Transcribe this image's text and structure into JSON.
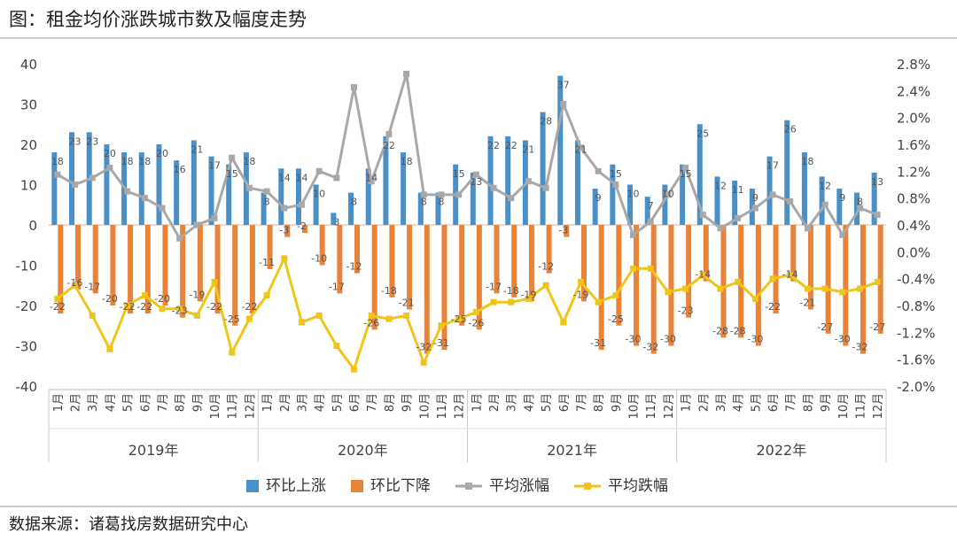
{
  "title": "图：租金均价涨跌城市数及幅度走势",
  "source": "数据来源：诸葛找房数据研究中心",
  "chart_data": {
    "type": "bar+line",
    "title": "图：租金均价涨跌城市数及幅度走势",
    "categories": [
      "1月",
      "2月",
      "3月",
      "4月",
      "5月",
      "6月",
      "7月",
      "8月",
      "9月",
      "10月",
      "11月",
      "12月",
      "1月",
      "2月",
      "3月",
      "4月",
      "5月",
      "6月",
      "7月",
      "8月",
      "9月",
      "10月",
      "11月",
      "12月",
      "1月",
      "2月",
      "3月",
      "4月",
      "5月",
      "6月",
      "7月",
      "8月",
      "9月",
      "10月",
      "11月",
      "12月",
      "1月",
      "2月",
      "3月",
      "4月",
      "5月",
      "6月",
      "7月",
      "8月",
      "9月",
      "10月",
      "11月",
      "12月"
    ],
    "years": [
      "2019年",
      "2020年",
      "2021年",
      "2022年"
    ],
    "left_axis": {
      "ticks": [
        "40",
        "30",
        "20",
        "10",
        "0",
        "-10",
        "-20",
        "-30",
        "-40"
      ],
      "ylim": [
        -40,
        40
      ]
    },
    "right_axis": {
      "ticks": [
        "2.8%",
        "2.4%",
        "2.0%",
        "1.6%",
        "1.2%",
        "0.8%",
        "0.4%",
        "0.0%",
        "-0.4%",
        "-0.8%",
        "-1.2%",
        "-1.6%",
        "-2.0%"
      ],
      "ylim": [
        -2.0,
        2.8
      ]
    },
    "series": [
      {
        "name": "环比上涨",
        "type": "bar",
        "axis": "left",
        "color": "#4a90c8",
        "values": [
          18,
          23,
          23,
          20,
          18,
          18,
          20,
          16,
          21,
          17,
          15,
          18,
          8,
          14,
          14,
          10,
          3,
          8,
          14,
          22,
          18,
          8,
          8,
          15,
          13,
          22,
          22,
          21,
          28,
          37,
          21,
          9,
          15,
          10,
          7,
          10,
          15,
          25,
          12,
          11,
          9,
          17,
          26,
          18,
          12,
          9,
          8,
          13
        ],
        "labels": [
          "18",
          "23",
          "23",
          "20",
          "18",
          "18",
          "20",
          "16",
          "21",
          "17",
          "15",
          "18",
          "8",
          "14",
          "14",
          "10",
          "3",
          "8",
          "14",
          "22",
          "18",
          "8",
          "8",
          "15",
          "13",
          "22",
          "22",
          "21",
          "28",
          "37",
          "21",
          "9",
          "15",
          "10",
          "7",
          "10",
          "15",
          "25",
          "12",
          "11",
          "9",
          "17",
          "26",
          "18",
          "12",
          "9",
          "8",
          "13"
        ]
      },
      {
        "name": "环比下降",
        "type": "bar",
        "axis": "left",
        "color": "#e8833a",
        "values": [
          -22,
          -16,
          -17,
          -20,
          -22,
          -22,
          -20,
          -23,
          -19,
          -22,
          -25,
          -22,
          -11,
          -3,
          -2,
          -10,
          -17,
          -12,
          -26,
          -18,
          -21,
          -32,
          -31,
          -25,
          -26,
          -17,
          -18,
          -19,
          -12,
          -3,
          -19,
          -31,
          -25,
          -30,
          -32,
          -30,
          -23,
          -14,
          -28,
          -28,
          -30,
          -22,
          -14,
          -21,
          -27,
          -30,
          -32,
          -27
        ],
        "labels": [
          "-22",
          "-16",
          "-17",
          "-20",
          "-22",
          "-22",
          "-20",
          "-23",
          "-19",
          "-22",
          "-25",
          "-22",
          "-11",
          "-3",
          "-2",
          "-10",
          "-17",
          "-12",
          "-26",
          "-18",
          "-21",
          "-32",
          "-31",
          "-25",
          "-26",
          "-17",
          "-18",
          "-19",
          "-12",
          "-3",
          "-19",
          "-31",
          "-25",
          "-30",
          "-32",
          "-30",
          "-23",
          "-14",
          "-28",
          "-28",
          "-30",
          "-22",
          "-14",
          "-21",
          "-27",
          "-30",
          "-32",
          "-27"
        ]
      },
      {
        "name": "平均涨幅",
        "type": "line",
        "axis": "right",
        "color": "#a8a8a8",
        "unit": "%",
        "values": [
          1.15,
          1.0,
          1.1,
          1.25,
          0.9,
          0.8,
          0.65,
          0.2,
          0.4,
          0.5,
          1.4,
          0.95,
          0.9,
          0.65,
          0.7,
          1.2,
          1.1,
          2.45,
          1.05,
          1.75,
          2.65,
          0.85,
          0.85,
          0.85,
          1.15,
          0.95,
          0.8,
          1.05,
          0.95,
          2.2,
          1.55,
          1.2,
          1.0,
          0.25,
          0.45,
          0.85,
          1.25,
          0.55,
          0.35,
          0.5,
          0.65,
          0.85,
          0.75,
          0.35,
          0.7,
          0.25,
          0.65,
          0.55
        ]
      },
      {
        "name": "平均跌幅",
        "type": "line",
        "axis": "right",
        "color": "#f0c419",
        "unit": "%",
        "values": [
          -0.7,
          -0.5,
          -0.95,
          -1.45,
          -0.8,
          -0.65,
          -0.85,
          -0.85,
          -0.95,
          -0.45,
          -1.5,
          -1.0,
          -0.65,
          -0.1,
          -1.05,
          -0.95,
          -1.4,
          -1.75,
          -0.95,
          -1.0,
          -0.95,
          -1.65,
          -1.1,
          -1.0,
          -0.9,
          -0.75,
          -0.75,
          -0.7,
          -0.5,
          -1.05,
          -0.45,
          -0.75,
          -0.65,
          -0.25,
          -0.25,
          -0.6,
          -0.55,
          -0.35,
          -0.55,
          -0.45,
          -0.7,
          -0.4,
          -0.35,
          -0.55,
          -0.55,
          -0.6,
          -0.55,
          -0.45
        ]
      }
    ],
    "legend_position": "bottom",
    "grid": false
  }
}
